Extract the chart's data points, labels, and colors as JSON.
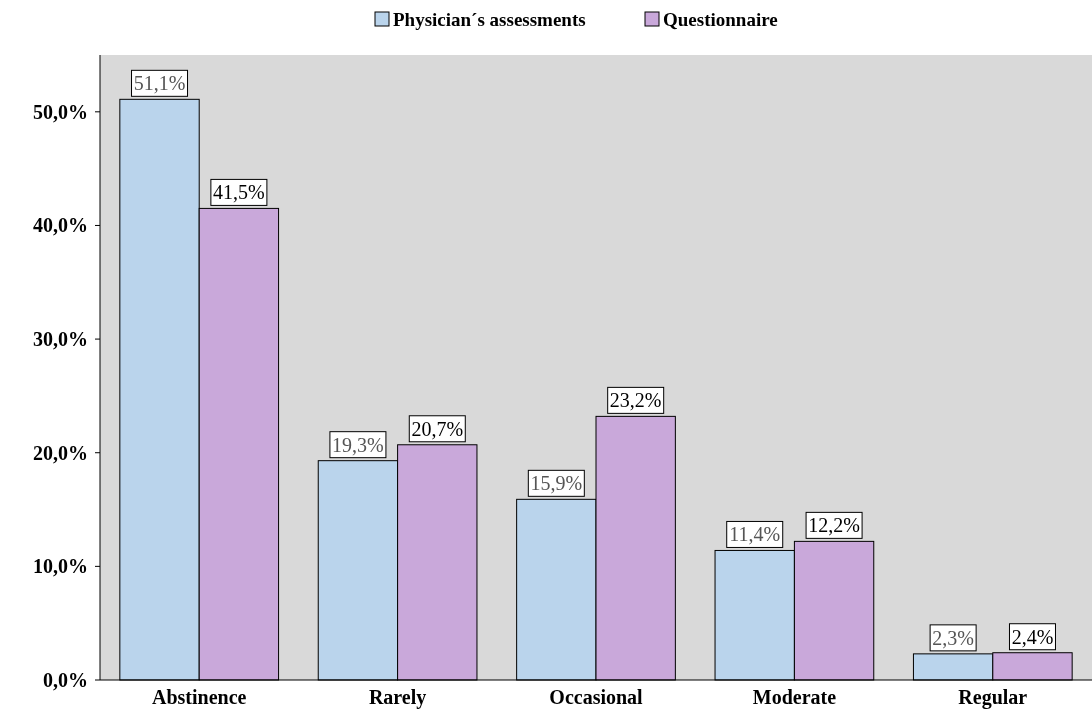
{
  "chart_data": {
    "type": "bar",
    "categories": [
      "Abstinence",
      "Rarely",
      "Occasional",
      "Moderate",
      "Regular"
    ],
    "series": [
      {
        "name": "Physician´s assessments",
        "color": "#bad4ec",
        "values": [
          51.1,
          19.3,
          15.9,
          11.4,
          2.3
        ],
        "value_labels": [
          "51,1%",
          "19,3%",
          "15,9%",
          "11,4%",
          "2,3%"
        ]
      },
      {
        "name": "Questionnaire",
        "color": "#c9a8da",
        "values": [
          41.5,
          20.7,
          23.2,
          12.2,
          2.4
        ],
        "value_labels": [
          "41,5%",
          "20,7%",
          "23,2%",
          "12,2%",
          "2,4%"
        ]
      }
    ],
    "ylim": [
      0,
      55
    ],
    "yticks": [
      {
        "value": 0,
        "label": "0,0%"
      },
      {
        "value": 10,
        "label": "10,0%"
      },
      {
        "value": 20,
        "label": "20,0%"
      },
      {
        "value": 30,
        "label": "30,0%"
      },
      {
        "value": 40,
        "label": "40,0%"
      },
      {
        "value": 50,
        "label": "50,0%"
      }
    ],
    "grid": false,
    "legend": "top"
  }
}
